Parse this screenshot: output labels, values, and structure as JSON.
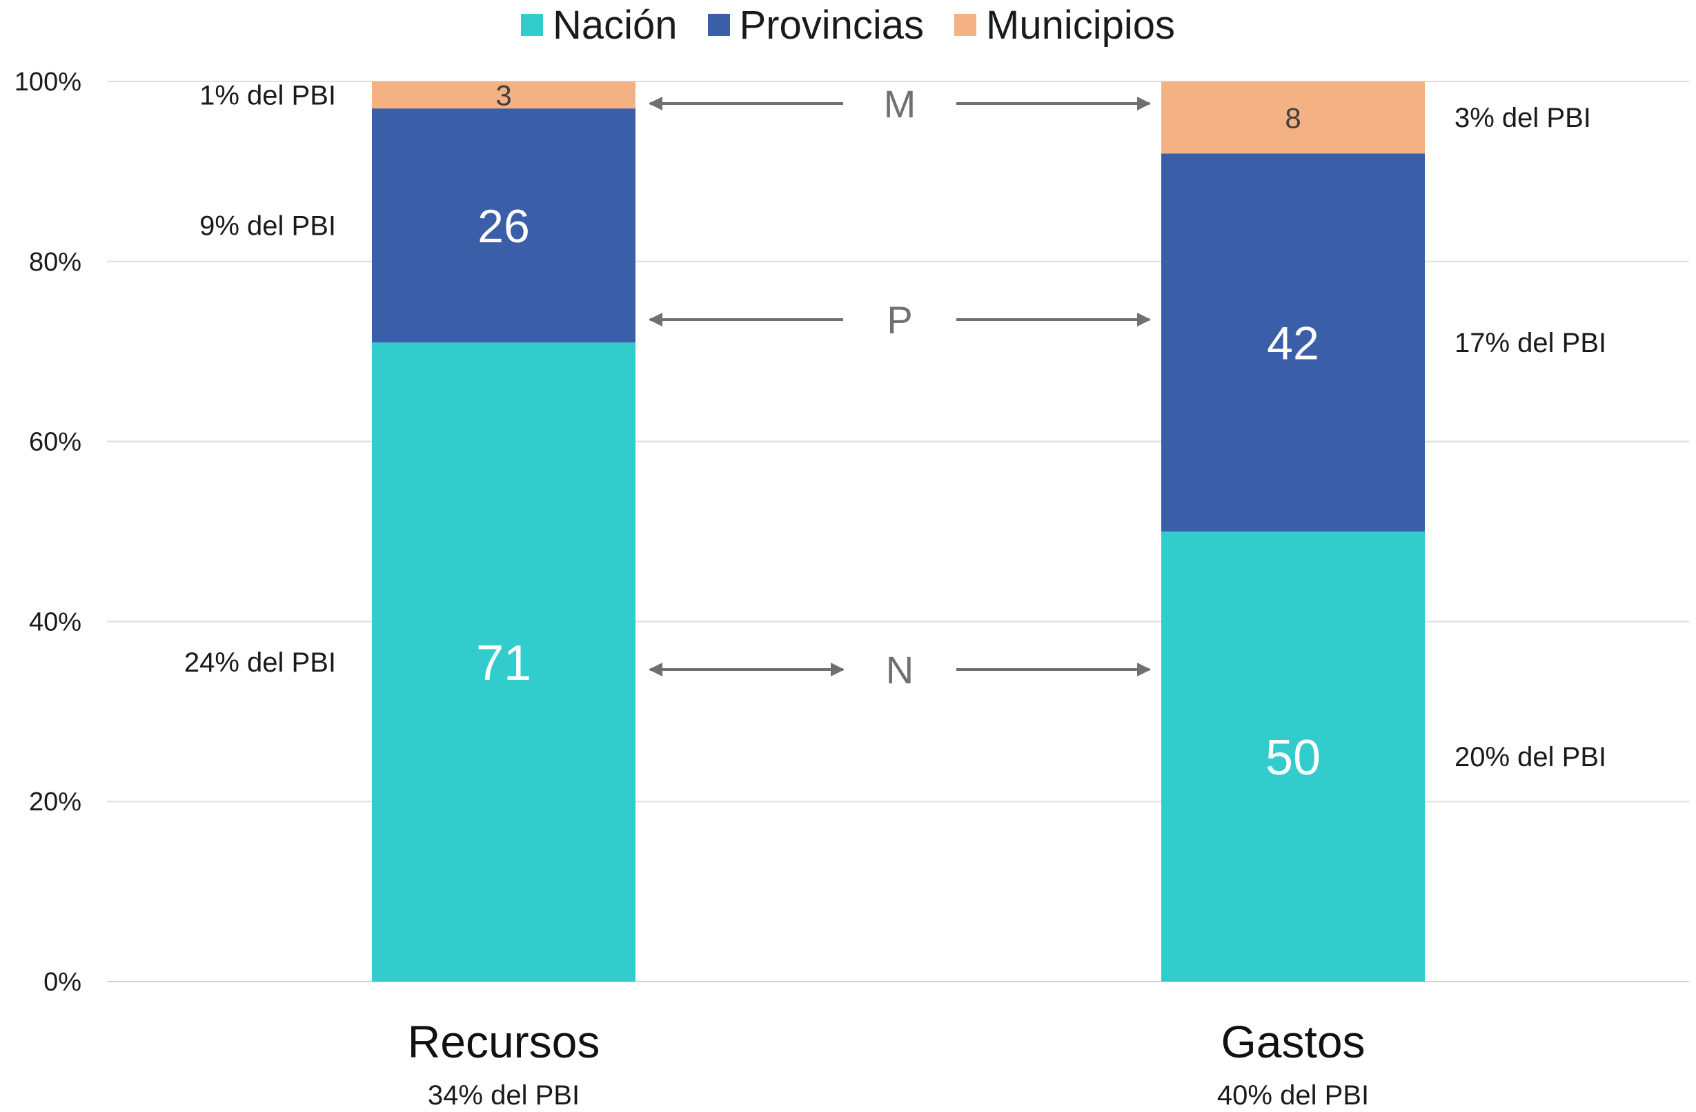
{
  "chart_data": {
    "type": "bar",
    "stacked": true,
    "categories": [
      "Recursos",
      "Gastos"
    ],
    "category_sublabels": [
      "34% del PBI",
      "40% del PBI"
    ],
    "series": [
      {
        "name": "Nación",
        "color": "#33CCCC",
        "values": [
          71,
          50
        ],
        "pbi_labels": [
          "24% del PBI",
          "20% del PBI"
        ]
      },
      {
        "name": "Provincias",
        "color": "#3A5FA8",
        "values": [
          26,
          42
        ],
        "pbi_labels": [
          "9% del PBI",
          "17% del PBI"
        ]
      },
      {
        "name": "Municipios",
        "color": "#F4B183",
        "values": [
          3,
          8
        ],
        "pbi_labels": [
          "1% del PBI",
          "3% del PBI"
        ]
      }
    ],
    "ylim": [
      0,
      100
    ],
    "y_ticks": [
      "0%",
      "20%",
      "40%",
      "60%",
      "80%",
      "100%"
    ],
    "grid": true,
    "legend_position": "top-center",
    "arrow_labels": [
      "N",
      "P",
      "M"
    ],
    "xlabel": "",
    "ylabel": "",
    "title": ""
  }
}
